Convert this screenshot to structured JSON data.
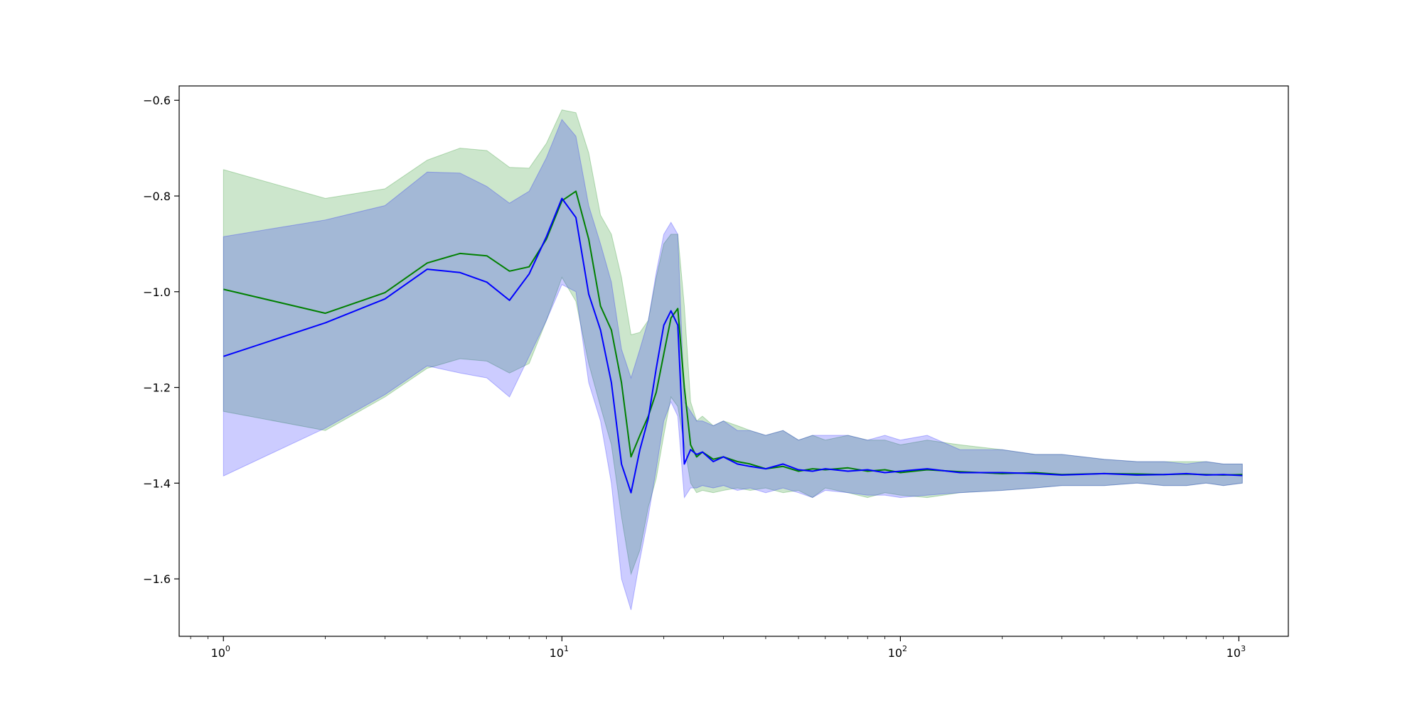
{
  "chart_data": {
    "type": "line",
    "title": "",
    "xlabel": "",
    "ylabel": "",
    "xscale": "log",
    "xlim": [
      0.74,
      1400
    ],
    "ylim": [
      -1.72,
      -0.57
    ],
    "grid": false,
    "legend": "none",
    "x_ticks": [
      {
        "value": 1,
        "base": "10",
        "exp": "0"
      },
      {
        "value": 10,
        "base": "10",
        "exp": "1"
      },
      {
        "value": 100,
        "base": "10",
        "exp": "2"
      },
      {
        "value": 1000,
        "base": "10",
        "exp": "3"
      }
    ],
    "y_ticks": [
      {
        "value": -0.6,
        "label": "−0.6"
      },
      {
        "value": -0.8,
        "label": "−0.8"
      },
      {
        "value": -1.0,
        "label": "−1.0"
      },
      {
        "value": -1.2,
        "label": "−1.2"
      },
      {
        "value": -1.4,
        "label": "−1.4"
      },
      {
        "value": -1.6,
        "label": "−1.6"
      }
    ],
    "series": [
      {
        "color": "#008000",
        "band_color": "#008000",
        "band_opacity": 0.2,
        "x": [
          1,
          2,
          3,
          4,
          5,
          6,
          7,
          8,
          9,
          10,
          11,
          12,
          13,
          14,
          15,
          16,
          17,
          18,
          19,
          20,
          21,
          22,
          23,
          24,
          25,
          26,
          28,
          30,
          33,
          36,
          40,
          45,
          50,
          55,
          60,
          70,
          80,
          90,
          100,
          120,
          150,
          200,
          250,
          300,
          400,
          500,
          600,
          700,
          800,
          900,
          1024
        ],
        "values": [
          -0.995,
          -1.045,
          -1.002,
          -0.94,
          -0.92,
          -0.925,
          -0.957,
          -0.948,
          -0.89,
          -0.81,
          -0.79,
          -0.89,
          -1.03,
          -1.08,
          -1.19,
          -1.345,
          -1.3,
          -1.26,
          -1.21,
          -1.13,
          -1.055,
          -1.035,
          -1.2,
          -1.32,
          -1.345,
          -1.335,
          -1.35,
          -1.345,
          -1.355,
          -1.36,
          -1.37,
          -1.365,
          -1.375,
          -1.37,
          -1.372,
          -1.368,
          -1.375,
          -1.372,
          -1.378,
          -1.372,
          -1.376,
          -1.38,
          -1.378,
          -1.382,
          -1.38,
          -1.381,
          -1.382,
          -1.381,
          -1.382,
          -1.383,
          -1.382
        ],
        "lower": [
          -1.25,
          -1.29,
          -1.22,
          -1.16,
          -1.14,
          -1.145,
          -1.17,
          -1.15,
          -1.06,
          -0.97,
          -1.02,
          -1.15,
          -1.24,
          -1.32,
          -1.47,
          -1.59,
          -1.54,
          -1.45,
          -1.39,
          -1.3,
          -1.22,
          -1.24,
          -1.32,
          -1.4,
          -1.42,
          -1.415,
          -1.42,
          -1.415,
          -1.41,
          -1.415,
          -1.41,
          -1.42,
          -1.415,
          -1.43,
          -1.41,
          -1.42,
          -1.43,
          -1.42,
          -1.425,
          -1.43,
          -1.42,
          -1.415,
          -1.41,
          -1.405,
          -1.405,
          -1.4,
          -1.405,
          -1.405,
          -1.4,
          -1.405,
          -1.4
        ],
        "upper": [
          -0.745,
          -0.805,
          -0.785,
          -0.725,
          -0.7,
          -0.705,
          -0.74,
          -0.742,
          -0.69,
          -0.62,
          -0.626,
          -0.71,
          -0.84,
          -0.88,
          -0.97,
          -1.09,
          -1.085,
          -1.06,
          -0.97,
          -0.9,
          -0.88,
          -0.88,
          -1.03,
          -1.23,
          -1.27,
          -1.26,
          -1.28,
          -1.27,
          -1.28,
          -1.29,
          -1.3,
          -1.29,
          -1.31,
          -1.3,
          -1.31,
          -1.3,
          -1.31,
          -1.31,
          -1.32,
          -1.31,
          -1.32,
          -1.33,
          -1.34,
          -1.34,
          -1.35,
          -1.355,
          -1.355,
          -1.355,
          -1.355,
          -1.36,
          -1.36
        ]
      },
      {
        "color": "#0000ff",
        "band_color": "#0000ff",
        "band_opacity": 0.2,
        "x": [
          1,
          2,
          3,
          4,
          5,
          6,
          7,
          8,
          9,
          10,
          11,
          12,
          13,
          14,
          15,
          16,
          17,
          18,
          19,
          20,
          21,
          22,
          23,
          24,
          25,
          26,
          28,
          30,
          33,
          36,
          40,
          45,
          50,
          55,
          60,
          70,
          80,
          90,
          100,
          120,
          150,
          200,
          250,
          300,
          400,
          500,
          600,
          700,
          800,
          900,
          1024
        ],
        "values": [
          -1.135,
          -1.065,
          -1.015,
          -0.953,
          -0.96,
          -0.98,
          -1.018,
          -0.963,
          -0.885,
          -0.805,
          -0.845,
          -1.005,
          -1.08,
          -1.19,
          -1.36,
          -1.42,
          -1.33,
          -1.265,
          -1.16,
          -1.07,
          -1.04,
          -1.07,
          -1.36,
          -1.33,
          -1.34,
          -1.335,
          -1.355,
          -1.345,
          -1.36,
          -1.365,
          -1.37,
          -1.36,
          -1.372,
          -1.375,
          -1.37,
          -1.375,
          -1.372,
          -1.378,
          -1.375,
          -1.37,
          -1.378,
          -1.378,
          -1.38,
          -1.383,
          -1.38,
          -1.383,
          -1.382,
          -1.38,
          -1.383,
          -1.382,
          -1.384
        ],
        "lower": [
          -1.385,
          -1.285,
          -1.215,
          -1.155,
          -1.17,
          -1.18,
          -1.22,
          -1.135,
          -1.06,
          -0.985,
          -1.0,
          -1.19,
          -1.27,
          -1.4,
          -1.6,
          -1.665,
          -1.56,
          -1.47,
          -1.37,
          -1.27,
          -1.23,
          -1.26,
          -1.43,
          -1.41,
          -1.41,
          -1.405,
          -1.41,
          -1.405,
          -1.415,
          -1.41,
          -1.42,
          -1.41,
          -1.42,
          -1.43,
          -1.415,
          -1.42,
          -1.425,
          -1.425,
          -1.43,
          -1.425,
          -1.42,
          -1.415,
          -1.41,
          -1.405,
          -1.405,
          -1.4,
          -1.405,
          -1.405,
          -1.4,
          -1.405,
          -1.4
        ],
        "upper": [
          -0.885,
          -0.85,
          -0.82,
          -0.75,
          -0.752,
          -0.78,
          -0.815,
          -0.79,
          -0.72,
          -0.64,
          -0.675,
          -0.82,
          -0.9,
          -0.98,
          -1.12,
          -1.18,
          -1.12,
          -1.06,
          -0.96,
          -0.88,
          -0.855,
          -0.88,
          -1.23,
          -1.25,
          -1.27,
          -1.27,
          -1.28,
          -1.27,
          -1.29,
          -1.29,
          -1.3,
          -1.29,
          -1.31,
          -1.3,
          -1.3,
          -1.3,
          -1.31,
          -1.3,
          -1.31,
          -1.3,
          -1.33,
          -1.33,
          -1.34,
          -1.34,
          -1.35,
          -1.355,
          -1.355,
          -1.36,
          -1.355,
          -1.36,
          -1.36
        ]
      }
    ]
  }
}
